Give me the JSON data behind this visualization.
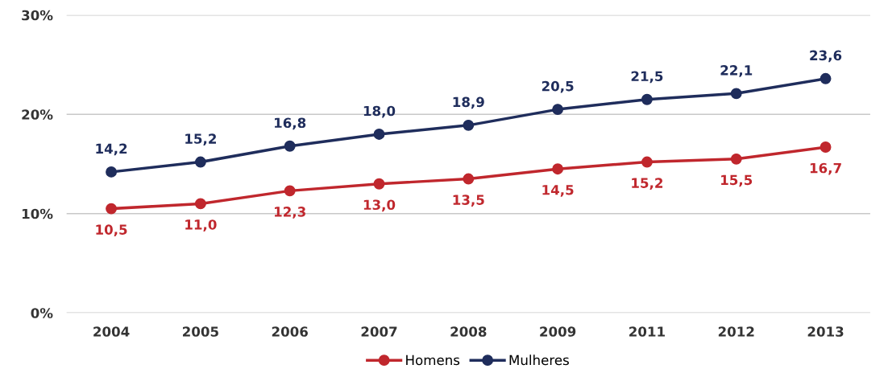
{
  "chart_data": {
    "type": "line",
    "categories": [
      "2004",
      "2005",
      "2006",
      "2007",
      "2008",
      "2009",
      "2011",
      "2012",
      "2013"
    ],
    "series": [
      {
        "name": "Homens",
        "color": "#c0272d",
        "values": [
          10.5,
          11.0,
          12.3,
          13.0,
          13.5,
          14.5,
          15.2,
          15.5,
          16.7
        ],
        "value_labels": [
          "10,5",
          "11,0",
          "12,3",
          "13,0",
          "13,5",
          "14,5",
          "15,2",
          "15,5",
          "16,7"
        ]
      },
      {
        "name": "Mulheres",
        "color": "#1f2d5c",
        "values": [
          14.2,
          15.2,
          16.8,
          18.0,
          18.9,
          20.5,
          21.5,
          22.1,
          23.6
        ],
        "value_labels": [
          "14,2",
          "15,2",
          "16,8",
          "18,0",
          "18,9",
          "20,5",
          "21,5",
          "22,1",
          "23,6"
        ]
      }
    ],
    "ylim": [
      0,
      30
    ],
    "yticks": [
      {
        "value": 0,
        "label": "0%"
      },
      {
        "value": 10,
        "label": "10%"
      },
      {
        "value": 20,
        "label": "20%"
      },
      {
        "value": 30,
        "label": "30%"
      }
    ],
    "grid": "y",
    "legend": "bottom",
    "marker": "circle",
    "line_style": "solid"
  }
}
